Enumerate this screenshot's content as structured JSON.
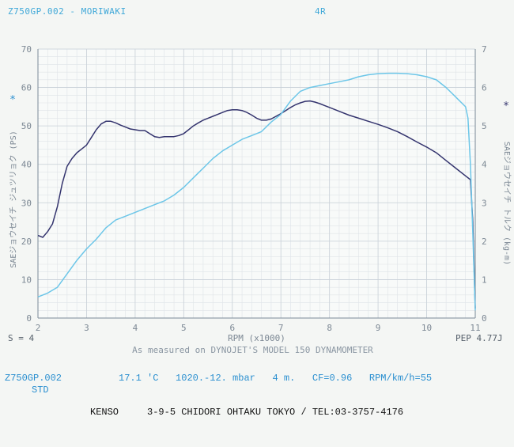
{
  "header": {
    "left": "Z750GP.002 - MORIWAKI",
    "mid": "4R"
  },
  "chart_data": {
    "type": "line",
    "xlabel": "RPM (x1000)",
    "ylabel_left": "SAEジョウセイチ ジュツリョク (PS)",
    "ylabel_right": "SAEジョウセイチ トルク (kg-m)",
    "xlim": [
      2,
      11
    ],
    "ylim_left": [
      0,
      70
    ],
    "ylim_right": [
      0,
      7
    ],
    "x_ticks": [
      "2",
      "3",
      "4",
      "5",
      "6",
      "7",
      "8",
      "9",
      "10",
      "11"
    ],
    "y_ticks_left": [
      "0",
      "10",
      "20",
      "30",
      "40",
      "50",
      "60",
      "70"
    ],
    "y_ticks_right": [
      "0",
      "1",
      "2",
      "3",
      "4",
      "5",
      "6",
      "7"
    ],
    "grid": true,
    "series": [
      {
        "color": "#34346e",
        "x": [
          2.0,
          2.1,
          2.2,
          2.3,
          2.4,
          2.5,
          2.6,
          2.7,
          2.8,
          2.9,
          3.0,
          3.1,
          3.2,
          3.3,
          3.4,
          3.5,
          3.6,
          3.7,
          3.8,
          3.9,
          4.0,
          4.1,
          4.2,
          4.3,
          4.4,
          4.5,
          4.6,
          4.7,
          4.8,
          4.9,
          5.0,
          5.1,
          5.2,
          5.3,
          5.4,
          5.5,
          5.6,
          5.7,
          5.8,
          5.9,
          6.0,
          6.1,
          6.2,
          6.3,
          6.4,
          6.5,
          6.6,
          6.7,
          6.8,
          6.9,
          7.0,
          7.1,
          7.2,
          7.3,
          7.4,
          7.5,
          7.6,
          7.7,
          7.8,
          7.9,
          8.0,
          8.2,
          8.4,
          8.6,
          8.8,
          9.0,
          9.2,
          9.4,
          9.6,
          9.8,
          10.0,
          10.2,
          10.4,
          10.6,
          10.8,
          10.9,
          10.95,
          11.0
        ],
        "values": [
          2.15,
          2.1,
          2.25,
          2.45,
          2.9,
          3.5,
          3.95,
          4.15,
          4.3,
          4.4,
          4.5,
          4.7,
          4.9,
          5.05,
          5.12,
          5.12,
          5.08,
          5.02,
          4.97,
          4.92,
          4.9,
          4.88,
          4.88,
          4.8,
          4.72,
          4.7,
          4.72,
          4.72,
          4.72,
          4.75,
          4.8,
          4.9,
          5.0,
          5.08,
          5.15,
          5.2,
          5.25,
          5.3,
          5.35,
          5.4,
          5.42,
          5.42,
          5.4,
          5.35,
          5.28,
          5.2,
          5.15,
          5.15,
          5.18,
          5.25,
          5.32,
          5.4,
          5.48,
          5.55,
          5.6,
          5.64,
          5.65,
          5.62,
          5.58,
          5.53,
          5.48,
          5.38,
          5.28,
          5.2,
          5.12,
          5.04,
          4.95,
          4.85,
          4.72,
          4.58,
          4.45,
          4.3,
          4.1,
          3.9,
          3.7,
          3.6,
          2.5,
          0.25
        ]
      },
      {
        "color": "#6cc6e8",
        "x": [
          2.0,
          2.2,
          2.4,
          2.6,
          2.8,
          3.0,
          3.2,
          3.4,
          3.6,
          3.8,
          4.0,
          4.2,
          4.4,
          4.6,
          4.8,
          5.0,
          5.2,
          5.4,
          5.6,
          5.8,
          6.0,
          6.2,
          6.4,
          6.6,
          6.8,
          7.0,
          7.2,
          7.4,
          7.6,
          7.8,
          8.0,
          8.2,
          8.4,
          8.6,
          8.8,
          9.0,
          9.2,
          9.4,
          9.6,
          9.8,
          10.0,
          10.2,
          10.4,
          10.6,
          10.8,
          10.85,
          10.9,
          10.95,
          11.0
        ],
        "values": [
          5.5,
          6.5,
          8.0,
          11.5,
          15.0,
          18.0,
          20.5,
          23.5,
          25.5,
          26.5,
          27.5,
          28.5,
          29.5,
          30.5,
          32.0,
          34.0,
          36.5,
          39.0,
          41.5,
          43.5,
          45.0,
          46.5,
          47.5,
          48.5,
          51.0,
          53.0,
          56.5,
          59.0,
          60.0,
          60.5,
          61.0,
          61.5,
          62.0,
          62.8,
          63.3,
          63.6,
          63.7,
          63.7,
          63.6,
          63.3,
          62.8,
          62.0,
          60.0,
          57.5,
          55.0,
          52.0,
          40.0,
          22.0,
          2.0
        ]
      }
    ],
    "left_marker": "*",
    "right_marker": "*",
    "bottom_left": "S = 4",
    "bottom_right": "PEP 4.77J",
    "caption": "As measured on DYNOJET'S MODEL 150 DYNAMOMETER"
  },
  "footer": {
    "run_id": "Z750GP.002",
    "conditions": "17.1 'C   1020.-12. mbar   4 m.   CF=0.96   RPM/km/h=55",
    "mode": "STD",
    "address": "KENSO     3-9-5 CHIDORI OHTAKU TOKYO / TEL:03-3757-4176"
  }
}
